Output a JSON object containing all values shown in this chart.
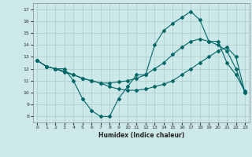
{
  "xlabel": "Humidex (Indice chaleur)",
  "background_color": "#cce8e8",
  "grid_color": "#aacccc",
  "line_color": "#006666",
  "xlim": [
    -0.5,
    23.5
  ],
  "ylim": [
    7.5,
    17.5
  ],
  "xticks": [
    0,
    1,
    2,
    3,
    4,
    5,
    6,
    7,
    8,
    9,
    10,
    11,
    12,
    13,
    14,
    15,
    16,
    17,
    18,
    19,
    20,
    21,
    22,
    23
  ],
  "yticks": [
    8,
    9,
    10,
    11,
    12,
    13,
    14,
    15,
    16,
    17
  ],
  "line1_x": [
    0,
    1,
    2,
    3,
    4,
    5,
    6,
    7,
    8,
    9,
    10,
    11,
    12,
    13,
    14,
    15,
    16,
    17,
    18,
    19,
    20,
    21,
    22,
    23
  ],
  "line1_y": [
    12.7,
    12.2,
    12.0,
    12.0,
    11.0,
    9.5,
    8.5,
    8.0,
    8.0,
    9.5,
    10.5,
    11.5,
    11.5,
    14.0,
    15.2,
    15.8,
    16.3,
    16.8,
    16.1,
    14.3,
    14.3,
    12.5,
    11.5,
    10.1
  ],
  "line2_x": [
    0,
    1,
    2,
    3,
    4,
    5,
    6,
    7,
    8,
    9,
    10,
    11,
    12,
    13,
    14,
    15,
    16,
    17,
    18,
    19,
    20,
    21,
    22,
    23
  ],
  "line2_y": [
    12.7,
    12.2,
    12.0,
    11.8,
    11.5,
    11.2,
    11.0,
    10.8,
    10.8,
    10.9,
    11.0,
    11.2,
    11.5,
    12.0,
    12.5,
    13.2,
    13.8,
    14.3,
    14.5,
    14.3,
    14.0,
    13.5,
    12.0,
    10.0
  ],
  "line3_x": [
    0,
    1,
    2,
    3,
    4,
    5,
    6,
    7,
    8,
    9,
    10,
    11,
    12,
    13,
    14,
    15,
    16,
    17,
    18,
    19,
    20,
    21,
    22,
    23
  ],
  "line3_y": [
    12.7,
    12.2,
    12.0,
    11.7,
    11.5,
    11.2,
    11.0,
    10.8,
    10.5,
    10.3,
    10.2,
    10.2,
    10.3,
    10.5,
    10.7,
    11.0,
    11.5,
    12.0,
    12.5,
    13.0,
    13.5,
    13.8,
    13.0,
    10.0
  ]
}
